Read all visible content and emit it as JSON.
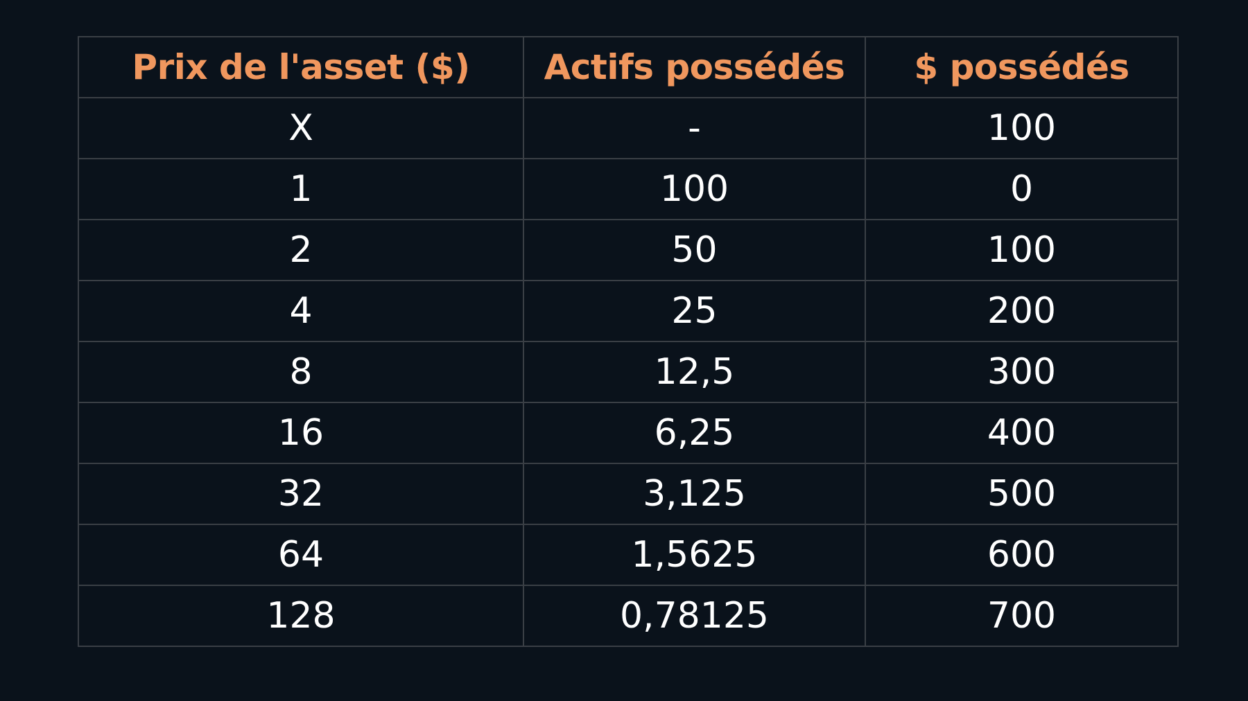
{
  "table": {
    "headers": [
      "Prix de l'asset ($)",
      "Actifs possédés",
      "$ possédés"
    ],
    "rows": [
      [
        "X",
        "-",
        "100"
      ],
      [
        "1",
        "100",
        "0"
      ],
      [
        "2",
        "50",
        "100"
      ],
      [
        "4",
        "25",
        "200"
      ],
      [
        "8",
        "12,5",
        "300"
      ],
      [
        "16",
        "6,25",
        "400"
      ],
      [
        "32",
        "3,125",
        "500"
      ],
      [
        "64",
        "1,5625",
        "600"
      ],
      [
        "128",
        "0,78125",
        "700"
      ]
    ]
  },
  "colors": {
    "background": "#0a121b",
    "header_text": "#f0975e",
    "cell_text": "#ffffff",
    "grid": "#3a3f45"
  }
}
